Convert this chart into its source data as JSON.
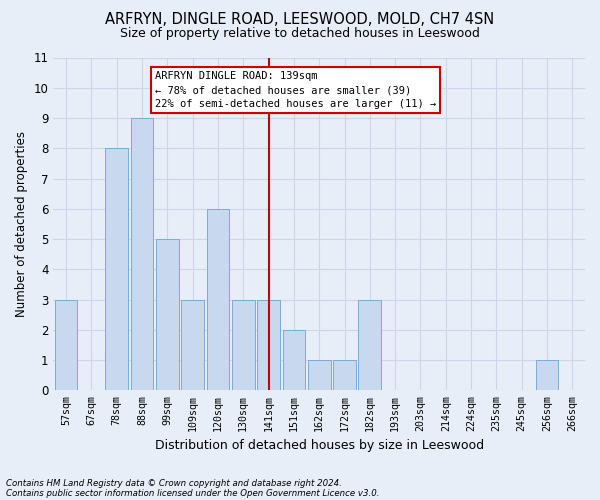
{
  "title": "ARFRYN, DINGLE ROAD, LEESWOOD, MOLD, CH7 4SN",
  "subtitle": "Size of property relative to detached houses in Leeswood",
  "xlabel": "Distribution of detached houses by size in Leeswood",
  "ylabel": "Number of detached properties",
  "categories": [
    "57sqm",
    "67sqm",
    "78sqm",
    "88sqm",
    "99sqm",
    "109sqm",
    "120sqm",
    "130sqm",
    "141sqm",
    "151sqm",
    "162sqm",
    "172sqm",
    "182sqm",
    "193sqm",
    "203sqm",
    "214sqm",
    "224sqm",
    "235sqm",
    "245sqm",
    "256sqm",
    "266sqm"
  ],
  "values": [
    3,
    0,
    8,
    9,
    5,
    3,
    6,
    3,
    3,
    2,
    1,
    1,
    3,
    0,
    0,
    0,
    0,
    0,
    0,
    1,
    0
  ],
  "bar_color": "#c8d9ef",
  "bar_edge_color": "#7aadd4",
  "grid_color": "#ccd6e8",
  "background_color": "#e8eef8",
  "vline_x_index": 8,
  "vline_color": "#cc0000",
  "annotation_line1": "ARFRYN DINGLE ROAD: 139sqm",
  "annotation_line2": "← 78% of detached houses are smaller (39)",
  "annotation_line3": "22% of semi-detached houses are larger (11) →",
  "annotation_box_color": "#ffffff",
  "annotation_box_edge_color": "#cc0000",
  "ylim": [
    0,
    11
  ],
  "yticks": [
    0,
    1,
    2,
    3,
    4,
    5,
    6,
    7,
    8,
    9,
    10,
    11
  ],
  "title_fontsize": 10.5,
  "subtitle_fontsize": 9,
  "footer1": "Contains HM Land Registry data © Crown copyright and database right 2024.",
  "footer2": "Contains public sector information licensed under the Open Government Licence v3.0."
}
